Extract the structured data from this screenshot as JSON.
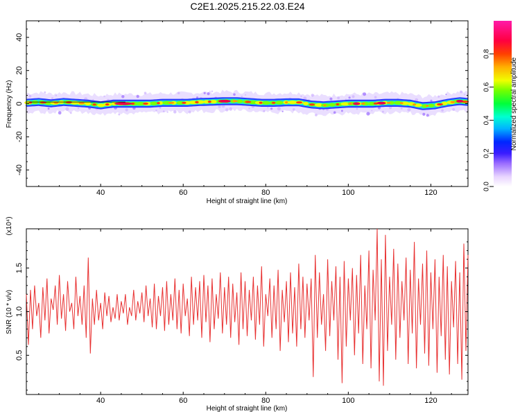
{
  "title": "C2E1.2025.215.22.03.E24",
  "chart_data": [
    {
      "type": "heatmap",
      "xlabel": "Height of straight line (km)",
      "ylabel": "Frequency (Hz)",
      "xlim": [
        22,
        129
      ],
      "ylim": [
        -50,
        50
      ],
      "x_ticks": [
        40,
        60,
        80,
        100,
        120
      ],
      "y_ticks": [
        40,
        20,
        0,
        -20,
        -40
      ],
      "y_tick_labels": [
        "40",
        "20",
        "0",
        "-20",
        "-40"
      ],
      "ridge_frequency": [
        [
          22,
          0.5
        ],
        [
          25,
          1.0
        ],
        [
          28,
          0.2
        ],
        [
          31,
          1.0
        ],
        [
          34,
          0.5
        ],
        [
          37,
          0.0
        ],
        [
          40,
          -1.0
        ],
        [
          43,
          0.0
        ],
        [
          46,
          0.0
        ],
        [
          49,
          0.0
        ],
        [
          52,
          0.0
        ],
        [
          55,
          0.5
        ],
        [
          58,
          0.5
        ],
        [
          61,
          0.5
        ],
        [
          64,
          1.0
        ],
        [
          67,
          1.2
        ],
        [
          70,
          1.5
        ],
        [
          73,
          1.5
        ],
        [
          76,
          1.0
        ],
        [
          79,
          0.5
        ],
        [
          82,
          0.5
        ],
        [
          85,
          0.8
        ],
        [
          88,
          0.8
        ],
        [
          91,
          -0.5
        ],
        [
          94,
          -1.0
        ],
        [
          97,
          -0.5
        ],
        [
          100,
          0.0
        ],
        [
          103,
          0.0
        ],
        [
          106,
          0.0
        ],
        [
          109,
          0.5
        ],
        [
          112,
          0.5
        ],
        [
          115,
          0.0
        ],
        [
          118,
          -1.5
        ],
        [
          121,
          -1.0
        ],
        [
          124,
          0.5
        ],
        [
          127,
          1.5
        ],
        [
          129,
          1.0
        ]
      ],
      "colorbar": {
        "label": "Normalized spectral amplitude",
        "range": [
          0,
          1
        ],
        "ticks": [
          0.0,
          0.2,
          0.4,
          0.6,
          0.8
        ],
        "tick_labels": [
          "0.0",
          "0.2",
          "0.4",
          "0.6",
          "0.8"
        ]
      },
      "grid": false
    },
    {
      "type": "line",
      "xlabel": "Height of straight line (km)",
      "ylabel": "SNR (10 * v/v)",
      "y_scale_label": "(x10⁴)",
      "xlim": [
        22,
        129
      ],
      "ylim": [
        0.05,
        1.95
      ],
      "x_ticks": [
        40,
        60,
        80,
        100,
        120
      ],
      "y_ticks": [
        0.5,
        1.0,
        1.5
      ],
      "y_tick_labels": [
        "0.5",
        "1.0",
        "1.5"
      ],
      "series": [
        {
          "color": "#e83030",
          "x": [
            22,
            22.5,
            23,
            23.5,
            24,
            24.5,
            25,
            25.5,
            26,
            26.5,
            27,
            27.5,
            28,
            28.5,
            29,
            29.5,
            30,
            30.5,
            31,
            31.5,
            32,
            32.5,
            33,
            33.5,
            34,
            34.5,
            35,
            35.5,
            36,
            36.5,
            37,
            37.5,
            38,
            38.5,
            39,
            39.5,
            40,
            40.5,
            41,
            41.5,
            42,
            42.5,
            43,
            43.5,
            44,
            44.5,
            45,
            45.5,
            46,
            46.5,
            47,
            47.5,
            48,
            48.5,
            49,
            49.5,
            50,
            50.5,
            51,
            51.5,
            52,
            52.5,
            53,
            53.5,
            54,
            54.5,
            55,
            55.5,
            56,
            56.5,
            57,
            57.5,
            58,
            58.5,
            59,
            59.5,
            60,
            60.5,
            61,
            61.5,
            62,
            62.5,
            63,
            63.5,
            64,
            64.5,
            65,
            65.5,
            66,
            66.5,
            67,
            67.5,
            68,
            68.5,
            69,
            69.5,
            70,
            70.5,
            71,
            71.5,
            72,
            72.5,
            73,
            73.5,
            74,
            74.5,
            75,
            75.5,
            76,
            76.5,
            77,
            77.5,
            78,
            78.5,
            79,
            79.5,
            80,
            80.5,
            81,
            81.5,
            82,
            82.5,
            83,
            83.5,
            84,
            84.5,
            85,
            85.5,
            86,
            86.5,
            87,
            87.5,
            88,
            88.5,
            89,
            89.5,
            90,
            90.5,
            91,
            91.5,
            92,
            92.5,
            93,
            93.5,
            94,
            94.5,
            95,
            95.5,
            96,
            96.5,
            97,
            97.5,
            98,
            98.5,
            99,
            99.5,
            100,
            100.5,
            101,
            101.5,
            102,
            102.5,
            103,
            103.5,
            104,
            104.5,
            105,
            105.5,
            106,
            106.5,
            107,
            107.5,
            108,
            108.5,
            109,
            109.5,
            110,
            110.5,
            111,
            111.5,
            112,
            112.5,
            113,
            113.5,
            114,
            114.5,
            115,
            115.5,
            116,
            116.5,
            117,
            117.5,
            118,
            118.5,
            119,
            119.5,
            120,
            120.5,
            121,
            121.5,
            122,
            122.5,
            123,
            123.5,
            124,
            124.5,
            125,
            125.5,
            126,
            126.5,
            127,
            127.5,
            128,
            128.5,
            129
          ],
          "y": [
            1.2,
            0.62,
            1.25,
            0.8,
            1.3,
            0.95,
            1.1,
            0.7,
            1.28,
            0.9,
            1.38,
            0.75,
            1.15,
            1.02,
            1.3,
            0.85,
            1.42,
            0.92,
            1.2,
            0.78,
            1.35,
            1.0,
            1.1,
            0.8,
            1.4,
            0.95,
            1.18,
            0.85,
            1.3,
            0.7,
            1.62,
            0.52,
            1.15,
            0.85,
            1.25,
            0.9,
            1.1,
            0.8,
            1.22,
            0.95,
            1.18,
            0.88,
            1.05,
            0.92,
            1.2,
            0.9,
            1.12,
            0.98,
            1.2,
            0.85,
            1.05,
            0.95,
            1.25,
            0.9,
            1.12,
            0.98,
            1.22,
            0.88,
            1.3,
            0.95,
            1.15,
            0.82,
            1.32,
            0.8,
            1.18,
            0.95,
            1.28,
            0.78,
            1.35,
            0.85,
            1.2,
            0.9,
            1.38,
            0.8,
            1.25,
            0.75,
            1.32,
            0.95,
            1.15,
            0.72,
            1.4,
            0.85,
            1.28,
            0.9,
            1.35,
            0.7,
            1.42,
            0.88,
            1.3,
            0.65,
            1.38,
            0.8,
            1.2,
            0.92,
            1.45,
            0.75,
            1.28,
            0.85,
            1.4,
            0.7,
            1.32,
            0.88,
            1.22,
            0.62,
            1.45,
            0.8,
            1.35,
            0.72,
            1.25,
            0.9,
            1.4,
            0.68,
            1.3,
            0.85,
            1.52,
            0.6,
            1.2,
            0.95,
            1.38,
            0.7,
            1.3,
            0.8,
            1.48,
            0.55,
            1.25,
            0.88,
            1.35,
            0.65,
            1.45,
            0.75,
            1.28,
            0.6,
            1.55,
            0.8,
            1.4,
            0.7,
            1.32,
            0.9,
            1.38,
            0.25,
            1.65,
            0.7,
            1.45,
            0.85,
            1.2,
            0.55,
            1.6,
            0.72,
            1.35,
            0.9,
            1.52,
            0.45,
            1.4,
            0.18,
            1.58,
            0.6,
            1.38,
            0.9,
            1.5,
            0.5,
            1.42,
            0.75,
            1.65,
            0.4,
            1.3,
            0.8,
            1.7,
            0.35,
            1.48,
            0.9,
            1.95,
            0.2,
            1.6,
            0.15,
            1.88,
            0.55,
            1.4,
            0.85,
            1.72,
            0.45,
            1.55,
            0.7,
            1.35,
            0.9,
            1.62,
            0.4,
            1.48,
            0.75,
            1.8,
            0.35,
            1.38,
            0.85,
            1.55,
            0.52,
            1.7,
            0.38,
            1.45,
            0.8,
            1.6,
            0.3,
            1.4,
            0.72,
            1.65,
            0.45,
            1.52,
            0.28,
            1.35,
            0.82,
            1.58,
            0.4,
            1.45,
            0.22,
            1.78,
            0.55,
            1.65
          ]
        }
      ],
      "grid": false
    }
  ]
}
